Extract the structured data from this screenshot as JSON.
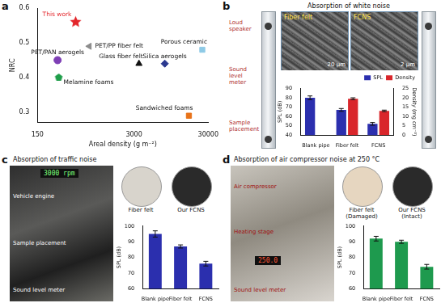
{
  "chart_data": [
    {
      "panel": "a",
      "type": "scatter",
      "x_label": "Areal density (g m⁻²)",
      "y_label": "NRC",
      "log": "x",
      "xlim": [
        150,
        30000
      ],
      "xticks": [
        150,
        3000,
        30000
      ],
      "ylim": [
        0.27,
        0.6
      ],
      "yticks": [
        0.3,
        0.4,
        0.5,
        0.6
      ],
      "grid": false,
      "series": [
        {
          "name": "This work",
          "color": "#e3262b",
          "marker": "star",
          "x": [
            490
          ],
          "values": [
            0.56
          ]
        },
        {
          "name": "PET/PP fiber felt",
          "color": "#8c8c8c",
          "marker": "triangle-left",
          "x": [
            750
          ],
          "values": [
            0.49
          ]
        },
        {
          "name": "Porous ceramic",
          "color": "#8ecae6",
          "marker": "square",
          "x": [
            25000
          ],
          "values": [
            0.48
          ]
        },
        {
          "name": "PET/PAN aerogels",
          "color": "#7e3fb5",
          "marker": "circle",
          "x": [
            280
          ],
          "values": [
            0.45
          ]
        },
        {
          "name": "Glass fiber felt",
          "color": "#111111",
          "marker": "triangle",
          "x": [
            3500
          ],
          "values": [
            0.44
          ]
        },
        {
          "name": "Silica aerogels",
          "color": "#2b3990",
          "marker": "diamond",
          "x": [
            7800
          ],
          "values": [
            0.44
          ]
        },
        {
          "name": "Melamine foams",
          "color": "#1f9e4a",
          "marker": "pentagon",
          "x": [
            290
          ],
          "values": [
            0.4
          ]
        },
        {
          "name": "Sandwiched foams",
          "color": "#e8731a",
          "marker": "square",
          "x": [
            16500
          ],
          "values": [
            0.29
          ]
        }
      ]
    },
    {
      "panel": "b",
      "type": "bar",
      "title": "Absorption of white noise",
      "categories": [
        "Blank pipe",
        "Fiber felt",
        "FCNS"
      ],
      "y_label": "SPL (dB)",
      "y2_label": "Density (mg cm⁻³)",
      "ylim": [
        40,
        90
      ],
      "yticks": [
        40,
        50,
        60,
        70,
        80,
        90
      ],
      "y2lim": [
        0,
        25
      ],
      "y2ticks": [
        0,
        5,
        10,
        15,
        20,
        25
      ],
      "grid": false,
      "legend": "top-right",
      "series": [
        {
          "name": "SPL",
          "color": "#2b2fae",
          "values": [
            80,
            67,
            52
          ],
          "errors": [
            2,
            1.5,
            1.5
          ]
        },
        {
          "name": "Density",
          "color": "#d9262b",
          "axis": "y2",
          "values": [
            null,
            19.5,
            13
          ],
          "errors": [
            null,
            0.5,
            0.4
          ]
        }
      ]
    },
    {
      "panel": "c",
      "type": "bar",
      "title": "Absorption of traffic noise",
      "categories": [
        "Blank pipe",
        "Fiber felt",
        "FCNS"
      ],
      "y_label": "SPL (dB)",
      "ylim": [
        60,
        100
      ],
      "yticks": [
        60,
        70,
        80,
        90,
        100
      ],
      "grid": false,
      "color": "#2b2fae",
      "values": [
        95,
        87,
        76
      ],
      "errors": [
        2,
        1,
        1.5
      ]
    },
    {
      "panel": "d",
      "type": "bar",
      "title": "Absorption of air compressor noise at 250 °C",
      "categories": [
        "Blank pipe",
        "Fiber felt",
        "FCNS"
      ],
      "y_label": "SPL (dB)",
      "ylim": [
        60,
        100
      ],
      "yticks": [
        60,
        70,
        80,
        90,
        100
      ],
      "grid": false,
      "color": "#1e9a4e",
      "values": [
        92,
        90,
        74
      ],
      "errors": [
        1.5,
        1,
        1.5
      ]
    }
  ],
  "photos": {
    "b": {
      "labels": [
        "Loud speaker",
        "Sound level meter",
        "Sample placement"
      ],
      "insets": [
        {
          "label": "Fiber felt",
          "scale": "20 μm"
        },
        {
          "label": "FCNS",
          "scale": "2 μm"
        }
      ]
    },
    "c": {
      "display": "3000 rpm",
      "labels": [
        "Vehicle engine",
        "Sample placement",
        "Sound level meter"
      ],
      "samples": [
        [
          "Fiber felt"
        ],
        [
          "Our FCNS"
        ]
      ]
    },
    "d": {
      "display": "250.0",
      "labels": [
        "Air compressor",
        "Heating stage",
        "Sound level meter"
      ],
      "samples": [
        [
          "Fiber felt",
          "(Damaged)"
        ],
        [
          "Our FCNS",
          "(Intact)"
        ]
      ]
    }
  }
}
